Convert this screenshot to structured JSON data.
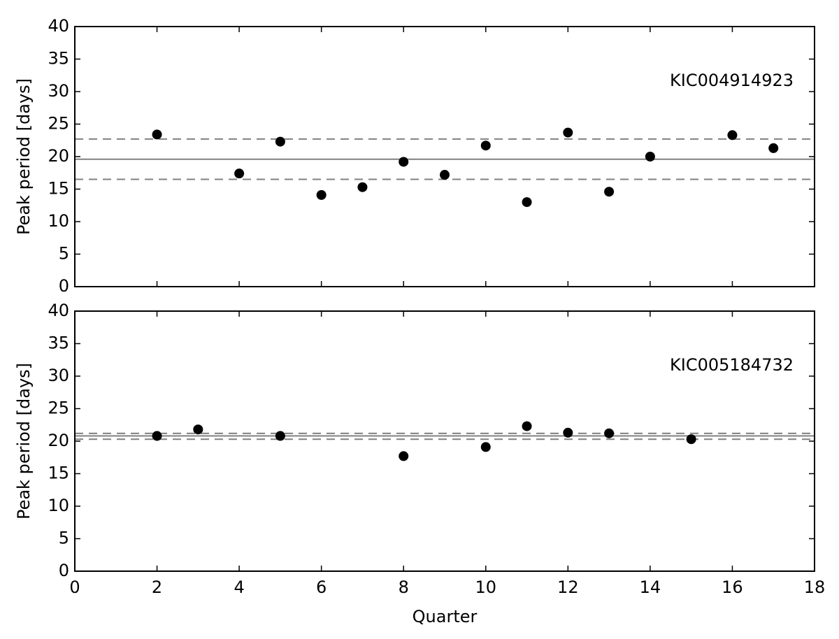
{
  "chart_data": [
    {
      "type": "scatter",
      "annotation": "KIC004914923",
      "y_label": "Peak period [days]",
      "x": [
        2,
        4,
        5,
        6,
        7,
        8,
        9,
        10,
        11,
        12,
        13,
        14,
        16,
        17
      ],
      "values": [
        23.4,
        17.4,
        22.3,
        14.1,
        15.3,
        19.2,
        17.2,
        21.7,
        13.0,
        23.7,
        14.6,
        20.0,
        23.3,
        21.3
      ],
      "color": "#000000",
      "xlim": [
        0,
        18
      ],
      "ylim": [
        0,
        40
      ],
      "yticks": [
        0,
        5,
        10,
        15,
        20,
        25,
        30,
        35,
        40
      ],
      "hlines": [
        {
          "value": 19.6,
          "linestyle": "solid"
        },
        {
          "value": 22.7,
          "linestyle": "dashed"
        },
        {
          "value": 16.5,
          "linestyle": "dashed"
        }
      ],
      "line_color": "#808080"
    },
    {
      "type": "scatter",
      "annotation": "KIC005184732",
      "y_label": "Peak period [days]",
      "x_label": "Quarter",
      "x": [
        2,
        3,
        5,
        8,
        10,
        11,
        12,
        13,
        15
      ],
      "values": [
        20.8,
        21.8,
        20.8,
        17.7,
        19.1,
        22.3,
        21.3,
        21.2,
        20.3
      ],
      "color": "#000000",
      "xlim": [
        0,
        18
      ],
      "xticks": [
        0,
        2,
        4,
        6,
        8,
        10,
        12,
        14,
        16,
        18
      ],
      "ylim": [
        0,
        40
      ],
      "yticks": [
        0,
        5,
        10,
        15,
        20,
        25,
        30,
        35,
        40
      ],
      "hlines": [
        {
          "value": 20.8,
          "linestyle": "solid"
        },
        {
          "value": 21.2,
          "linestyle": "dashed"
        },
        {
          "value": 20.3,
          "linestyle": "dashed"
        }
      ],
      "line_color": "#808080"
    }
  ]
}
